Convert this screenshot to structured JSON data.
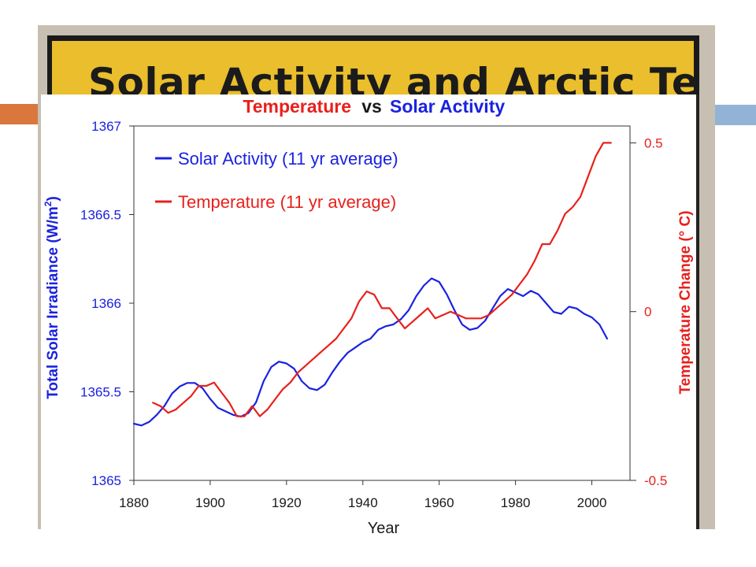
{
  "slide": {
    "banner_title": "Solar Activity and Arctic Temps.",
    "colors": {
      "accent_orange": "#d9773d",
      "accent_blue": "#93b3d6",
      "banner_gold": "#eabe2c"
    }
  },
  "chart_data": {
    "type": "line",
    "title_part1": "Temperature",
    "title_vs": "vs",
    "title_part2": "Solar Activity",
    "xlabel": "Year",
    "ylabel_left_main": "Total Solar Irradiance (W/m",
    "ylabel_left_sup": "2",
    "ylabel_left_end": ")",
    "ylabel_right": "Temperature Change (° C)",
    "xlim": [
      1880,
      2010
    ],
    "ylim_left": [
      1365,
      1367
    ],
    "ylim_right": [
      -0.5,
      0.55
    ],
    "x_ticks": [
      "1880",
      "1900",
      "1920",
      "1940",
      "1960",
      "1980",
      "2000"
    ],
    "y_left_ticks": [
      "1367",
      "1366.5",
      "1366",
      "1365.5",
      "1365"
    ],
    "y_right_ticks": [
      "0.5",
      "0",
      "-0.5"
    ],
    "legend_placement": "top-left",
    "series": [
      {
        "name": "Solar Activity (11 yr average)",
        "axis": "left",
        "color": "#1a22e0",
        "points": [
          [
            1880,
            1365.32
          ],
          [
            1882,
            1365.31
          ],
          [
            1884,
            1365.33
          ],
          [
            1886,
            1365.37
          ],
          [
            1888,
            1365.42
          ],
          [
            1890,
            1365.49
          ],
          [
            1892,
            1365.53
          ],
          [
            1894,
            1365.55
          ],
          [
            1896,
            1365.55
          ],
          [
            1898,
            1365.52
          ],
          [
            1900,
            1365.46
          ],
          [
            1902,
            1365.41
          ],
          [
            1904,
            1365.39
          ],
          [
            1906,
            1365.37
          ],
          [
            1908,
            1365.36
          ],
          [
            1910,
            1365.38
          ],
          [
            1912,
            1365.44
          ],
          [
            1914,
            1365.56
          ],
          [
            1916,
            1365.64
          ],
          [
            1918,
            1365.67
          ],
          [
            1920,
            1365.66
          ],
          [
            1922,
            1365.63
          ],
          [
            1924,
            1365.56
          ],
          [
            1926,
            1365.52
          ],
          [
            1928,
            1365.51
          ],
          [
            1930,
            1365.54
          ],
          [
            1932,
            1365.61
          ],
          [
            1934,
            1365.67
          ],
          [
            1936,
            1365.72
          ],
          [
            1938,
            1365.75
          ],
          [
            1940,
            1365.78
          ],
          [
            1942,
            1365.8
          ],
          [
            1944,
            1365.85
          ],
          [
            1946,
            1365.87
          ],
          [
            1948,
            1365.88
          ],
          [
            1950,
            1365.91
          ],
          [
            1952,
            1365.96
          ],
          [
            1954,
            1366.04
          ],
          [
            1956,
            1366.1
          ],
          [
            1958,
            1366.14
          ],
          [
            1960,
            1366.12
          ],
          [
            1962,
            1366.05
          ],
          [
            1964,
            1365.96
          ],
          [
            1966,
            1365.88
          ],
          [
            1968,
            1365.85
          ],
          [
            1970,
            1365.86
          ],
          [
            1972,
            1365.9
          ],
          [
            1974,
            1365.97
          ],
          [
            1976,
            1366.04
          ],
          [
            1978,
            1366.08
          ],
          [
            1980,
            1366.06
          ],
          [
            1982,
            1366.04
          ],
          [
            1984,
            1366.07
          ],
          [
            1986,
            1366.05
          ],
          [
            1988,
            1366.0
          ],
          [
            1990,
            1365.95
          ],
          [
            1992,
            1365.94
          ],
          [
            1994,
            1365.98
          ],
          [
            1996,
            1365.97
          ],
          [
            1998,
            1365.94
          ],
          [
            2000,
            1365.92
          ],
          [
            2002,
            1365.88
          ],
          [
            2004,
            1365.8
          ]
        ]
      },
      {
        "name": "Temperature (11 yr average)",
        "axis": "right",
        "color": "#e8201c",
        "points": [
          [
            1885,
            -0.27
          ],
          [
            1887,
            -0.28
          ],
          [
            1889,
            -0.3
          ],
          [
            1891,
            -0.29
          ],
          [
            1893,
            -0.27
          ],
          [
            1895,
            -0.25
          ],
          [
            1897,
            -0.22
          ],
          [
            1899,
            -0.22
          ],
          [
            1901,
            -0.21
          ],
          [
            1903,
            -0.24
          ],
          [
            1905,
            -0.27
          ],
          [
            1907,
            -0.31
          ],
          [
            1909,
            -0.31
          ],
          [
            1911,
            -0.28
          ],
          [
            1913,
            -0.31
          ],
          [
            1915,
            -0.29
          ],
          [
            1917,
            -0.26
          ],
          [
            1919,
            -0.23
          ],
          [
            1921,
            -0.21
          ],
          [
            1923,
            -0.18
          ],
          [
            1925,
            -0.16
          ],
          [
            1927,
            -0.14
          ],
          [
            1929,
            -0.12
          ],
          [
            1931,
            -0.1
          ],
          [
            1933,
            -0.08
          ],
          [
            1935,
            -0.05
          ],
          [
            1937,
            -0.02
          ],
          [
            1939,
            0.03
          ],
          [
            1941,
            0.06
          ],
          [
            1943,
            0.05
          ],
          [
            1945,
            0.01
          ],
          [
            1947,
            0.01
          ],
          [
            1949,
            -0.02
          ],
          [
            1951,
            -0.05
          ],
          [
            1953,
            -0.03
          ],
          [
            1955,
            -0.01
          ],
          [
            1957,
            0.01
          ],
          [
            1959,
            -0.02
          ],
          [
            1961,
            -0.01
          ],
          [
            1963,
            0.0
          ],
          [
            1965,
            -0.01
          ],
          [
            1967,
            -0.02
          ],
          [
            1969,
            -0.02
          ],
          [
            1971,
            -0.02
          ],
          [
            1973,
            -0.01
          ],
          [
            1975,
            0.01
          ],
          [
            1977,
            0.03
          ],
          [
            1979,
            0.05
          ],
          [
            1981,
            0.08
          ],
          [
            1983,
            0.11
          ],
          [
            1985,
            0.15
          ],
          [
            1987,
            0.2
          ],
          [
            1989,
            0.2
          ],
          [
            1991,
            0.24
          ],
          [
            1993,
            0.29
          ],
          [
            1995,
            0.31
          ],
          [
            1997,
            0.34
          ],
          [
            1999,
            0.4
          ],
          [
            2001,
            0.46
          ],
          [
            2003,
            0.5
          ],
          [
            2005,
            0.5
          ]
        ]
      }
    ]
  }
}
